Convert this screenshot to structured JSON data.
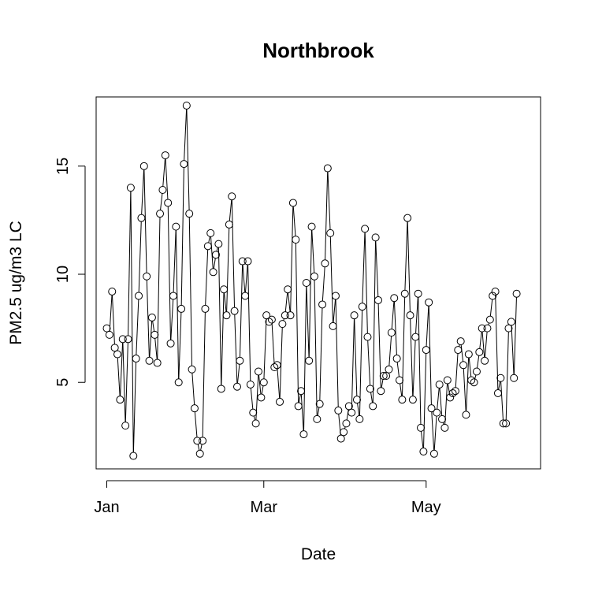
{
  "chart_data": {
    "type": "line",
    "title": "Northbrook",
    "xlabel": "Date",
    "ylabel": "PM2.5 ug/m3 LC",
    "x_start": "2019-01-01",
    "x_ticks": [
      {
        "label": "Jan",
        "date": "2019-01-01"
      },
      {
        "label": "Mar",
        "date": "2019-03-01"
      },
      {
        "label": "May",
        "date": "2019-05-01"
      }
    ],
    "y_ticks": [
      5,
      10,
      15
    ],
    "xlim": [
      "2018-12-28",
      "2019-06-13"
    ],
    "ylim": [
      1.0,
      18.2
    ],
    "grid": false,
    "legend": "none",
    "values": [
      7.5,
      7.2,
      9.2,
      6.6,
      6.3,
      4.2,
      7.0,
      3.0,
      7.0,
      14.0,
      1.6,
      6.1,
      9.0,
      12.6,
      15.0,
      9.9,
      6.0,
      8.0,
      7.2,
      5.9,
      12.8,
      13.9,
      15.5,
      13.3,
      6.8,
      9.0,
      12.2,
      5.0,
      8.4,
      15.1,
      17.8,
      12.8,
      5.6,
      3.8,
      2.3,
      1.7,
      2.3,
      8.4,
      11.3,
      11.9,
      10.1,
      10.9,
      11.4,
      4.7,
      9.3,
      8.1,
      12.3,
      13.6,
      8.3,
      4.8,
      6.0,
      10.6,
      9.0,
      10.6,
      4.9,
      3.6,
      3.1,
      5.5,
      4.3,
      5.0,
      8.1,
      7.8,
      7.9,
      5.7,
      5.8,
      4.1,
      7.7,
      8.1,
      9.3,
      8.1,
      13.3,
      11.6,
      3.9,
      4.6,
      2.6,
      9.6,
      6.0,
      12.2,
      9.9,
      3.3,
      4.0,
      8.6,
      10.5,
      14.9,
      11.9,
      7.6,
      9.0,
      3.7,
      2.4,
      2.7,
      3.1,
      3.9,
      3.6,
      8.1,
      4.2,
      3.3,
      8.5,
      12.1,
      7.1,
      4.7,
      3.9,
      11.7,
      8.8,
      4.6,
      5.3,
      5.3,
      5.6,
      7.3,
      8.9,
      6.1,
      5.1,
      4.2,
      9.1,
      12.6,
      8.1,
      4.2,
      7.1,
      9.1,
      2.9,
      1.8,
      6.5,
      8.7,
      3.8,
      1.7,
      3.6,
      4.9,
      3.3,
      2.9,
      5.1,
      4.3,
      4.5,
      4.6,
      6.5,
      6.9,
      5.8,
      3.5,
      6.3,
      5.1,
      5.0,
      5.5,
      6.4,
      7.5,
      6.0,
      7.5,
      7.9,
      9.0,
      9.2,
      4.5,
      5.2,
      3.1,
      3.1,
      7.5,
      7.8,
      5.2,
      9.1
    ]
  }
}
